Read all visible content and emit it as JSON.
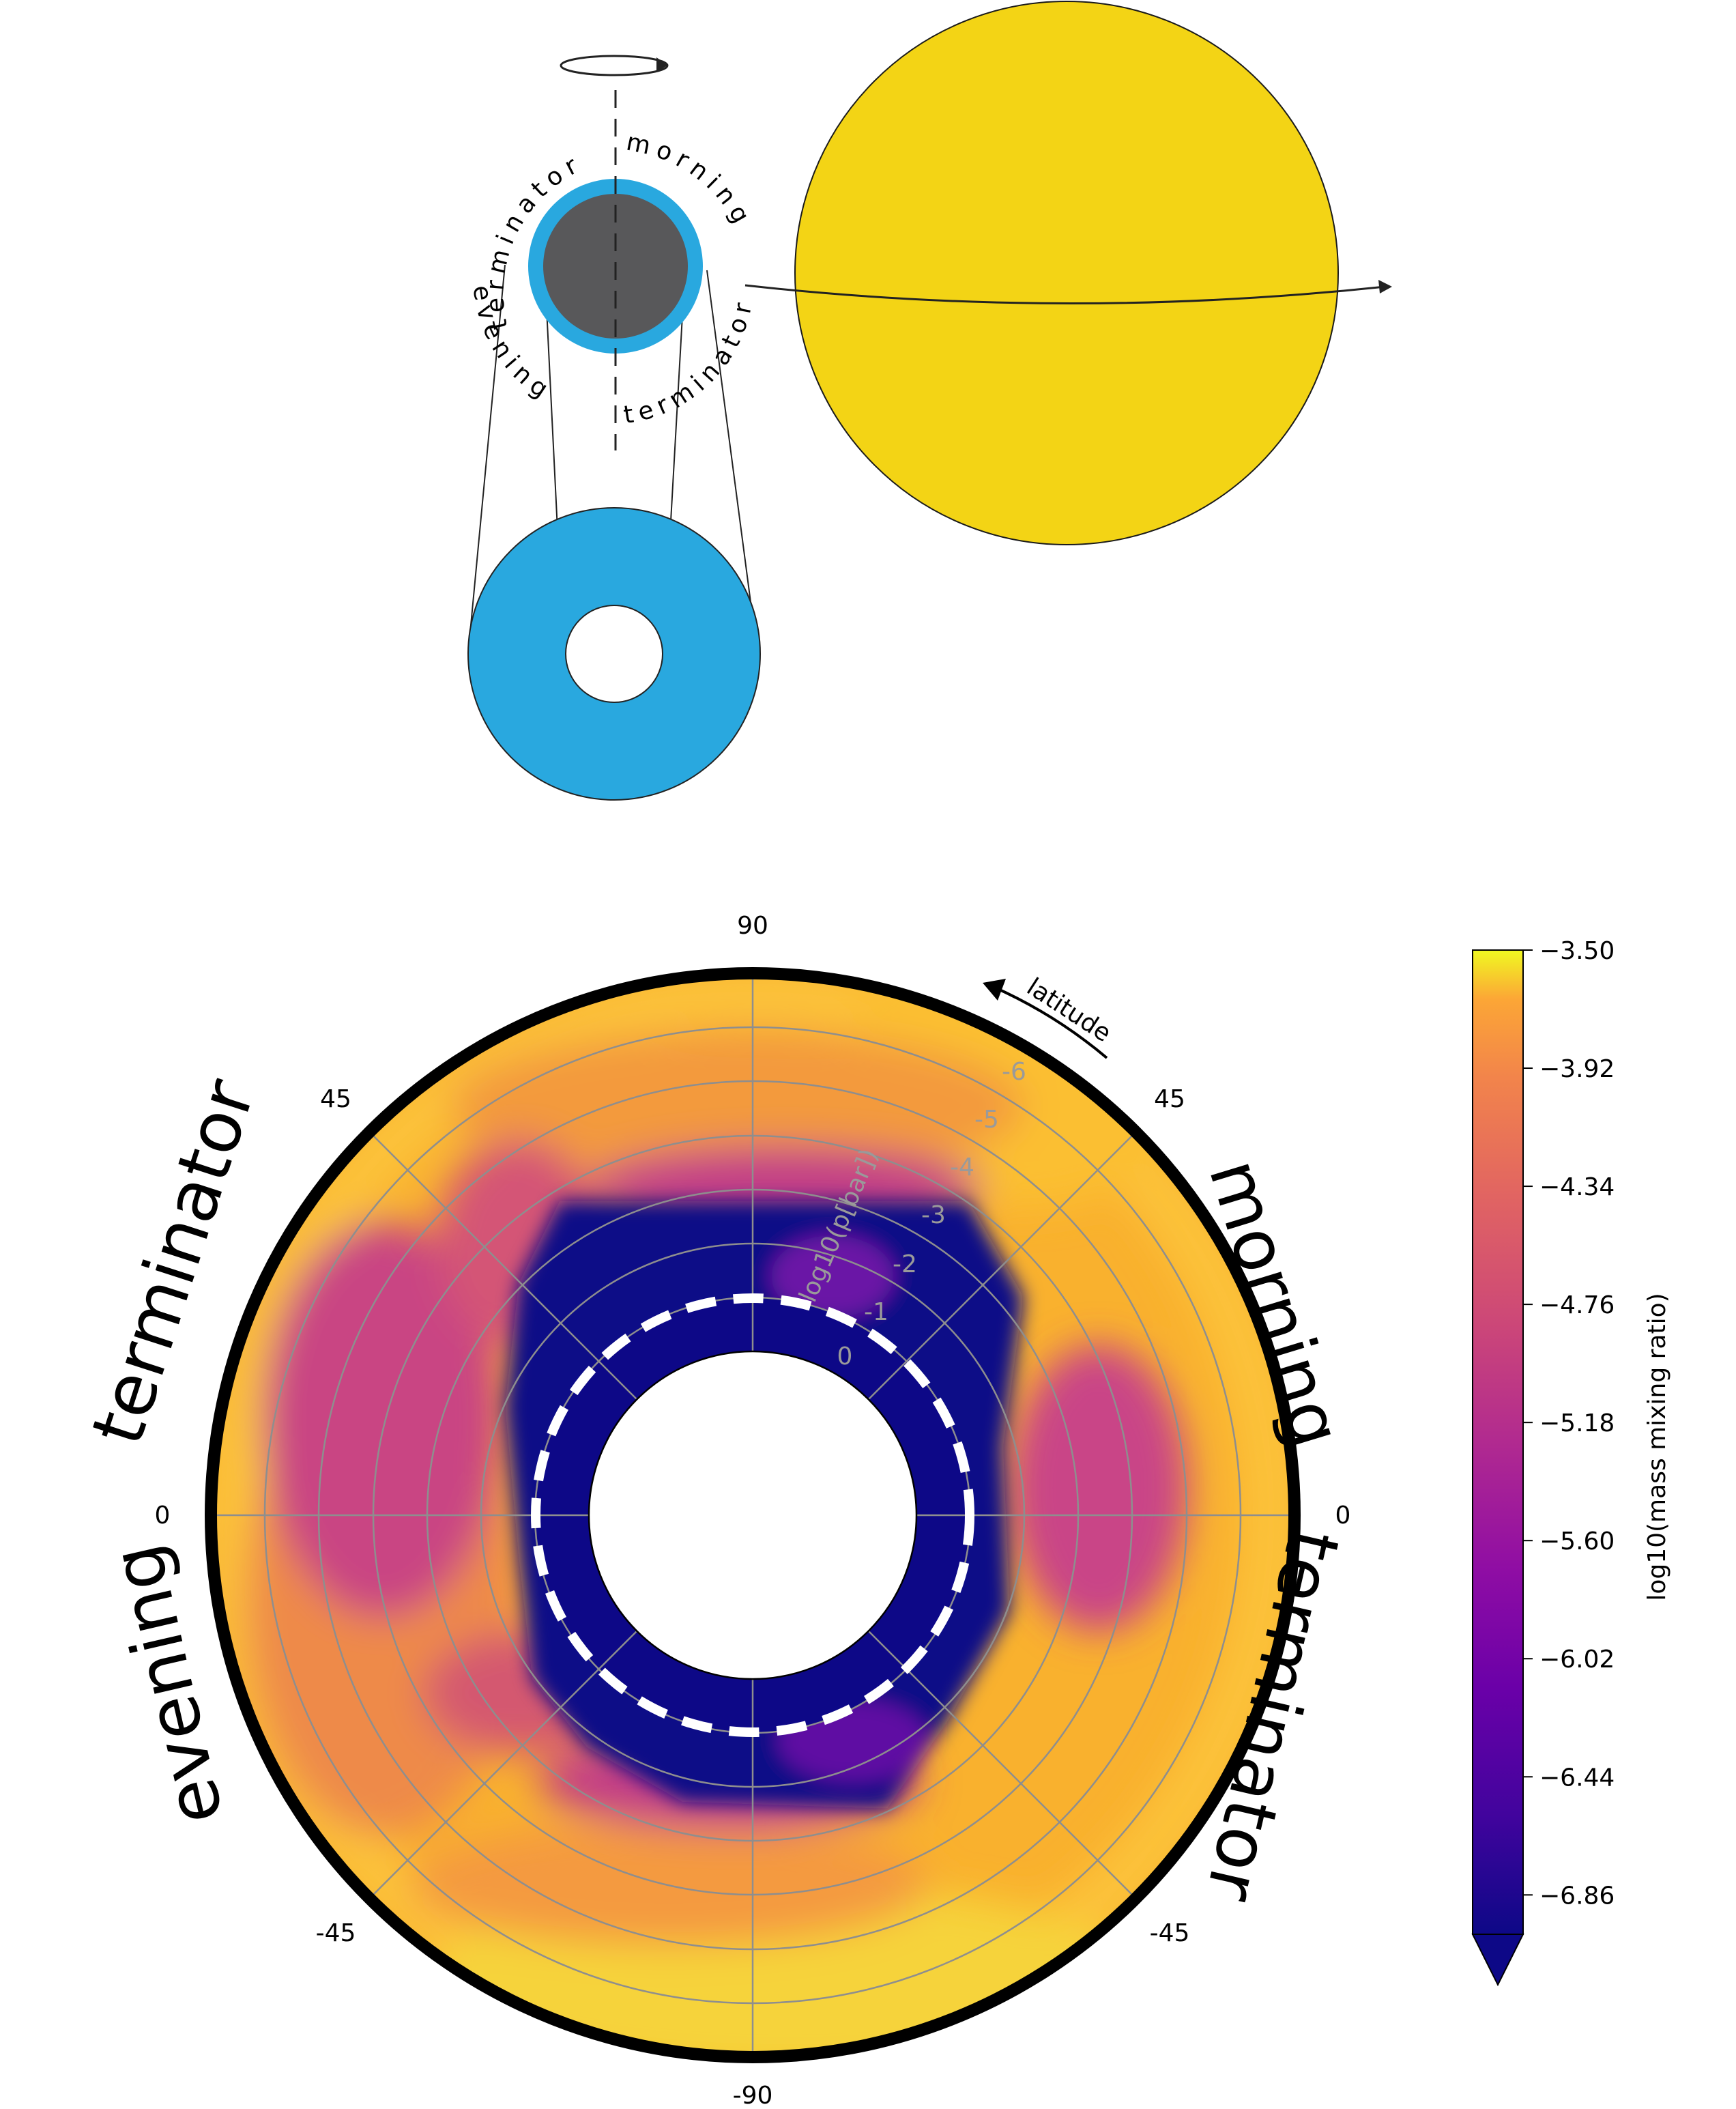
{
  "diagram": {
    "schematic": {
      "arc_text_top_left": "terminator",
      "arc_text_top_right": "morning",
      "arc_text_bottom_left": "evening",
      "arc_text_bottom_right": "terminator",
      "colors": {
        "planet": "#58585a",
        "atmosphere": "#29a8df",
        "star": "#f3d415"
      }
    },
    "polar_map": {
      "angular_ticks": [
        "90",
        "45",
        "45",
        "0",
        "0",
        "-45",
        "-45",
        "-90"
      ],
      "radial_ticks": [
        "0",
        "-1",
        "-2",
        "-3",
        "-4",
        "-5",
        "-6"
      ],
      "radial_axis_label": "log10(p[bar])",
      "latitude_label": "latitude",
      "left_labels": [
        "terminator",
        "evening"
      ],
      "right_labels": [
        "morning",
        "terminator"
      ]
    },
    "colorbar": {
      "label": "log10(mass mixing ratio)",
      "ticks": [
        "−3.50",
        "−3.92",
        "−4.34",
        "−4.76",
        "−5.18",
        "−5.60",
        "−6.02",
        "−6.44",
        "−6.86"
      ],
      "range": [
        -7.0,
        -3.5
      ],
      "colormap": "plasma"
    }
  }
}
